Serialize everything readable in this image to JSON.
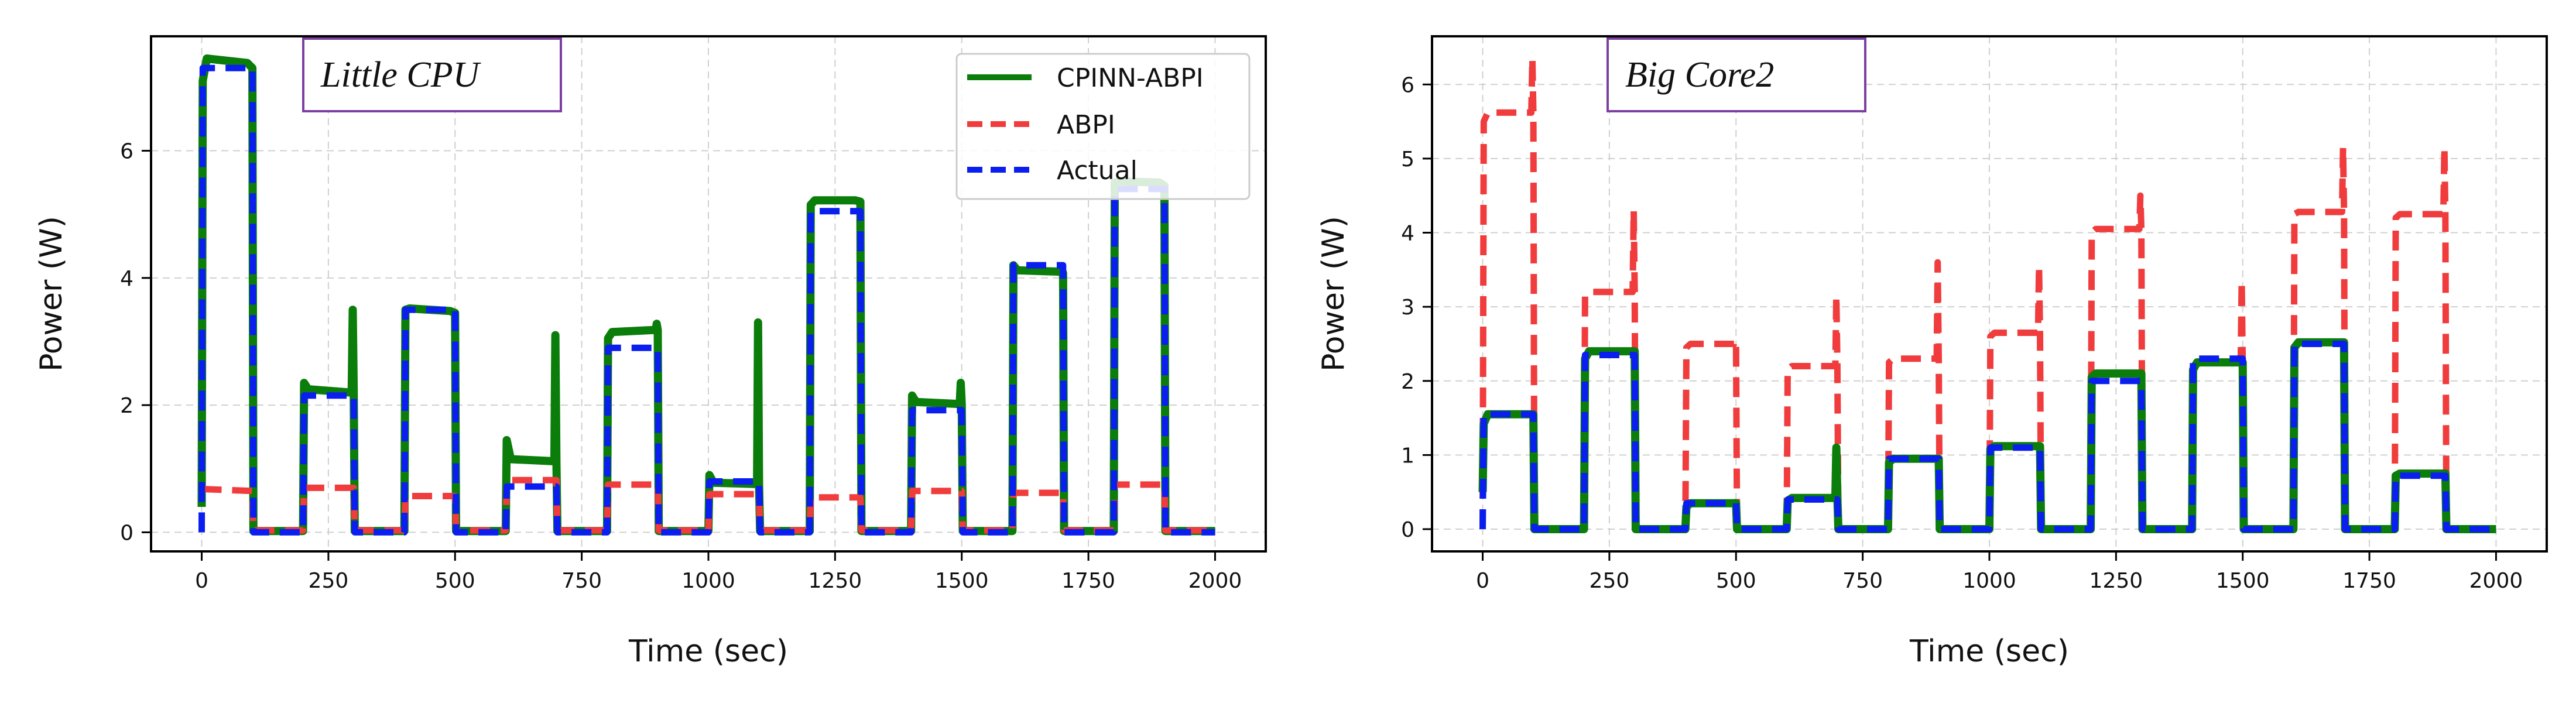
{
  "chart_data": [
    {
      "type": "line",
      "tag": "Little CPU",
      "xlabel": "Time (sec)",
      "ylabel": "Power (W)",
      "xlim": [
        -100,
        2100
      ],
      "ylim": [
        -0.3,
        7.8
      ],
      "xticks": [
        0,
        250,
        500,
        750,
        1000,
        1250,
        1500,
        1750,
        2000
      ],
      "yticks": [
        0,
        2,
        4,
        6
      ],
      "legend": {
        "position": "top-right",
        "entries": [
          "CPINN-ABPI",
          "ABPI",
          "Actual"
        ]
      },
      "series": [
        {
          "name": "CPINN-ABPI",
          "color": "#0a7d0a",
          "style": "solid",
          "x": [
            0,
            2,
            10,
            90,
            100,
            102,
            200,
            202,
            210,
            290,
            296,
            298,
            300,
            302,
            400,
            402,
            410,
            490,
            500,
            502,
            600,
            602,
            610,
            690,
            696,
            698,
            700,
            702,
            800,
            802,
            810,
            890,
            896,
            898,
            900,
            902,
            1000,
            1002,
            1010,
            1090,
            1096,
            1098,
            1100,
            1102,
            1200,
            1202,
            1210,
            1290,
            1300,
            1302,
            1400,
            1402,
            1410,
            1490,
            1496,
            1498,
            1500,
            1502,
            1600,
            1602,
            1610,
            1690,
            1700,
            1702,
            1800,
            1802,
            1810,
            1890,
            1900,
            1902,
            2000
          ],
          "y": [
            0.4,
            7.1,
            7.45,
            7.38,
            7.3,
            0.02,
            0.02,
            2.35,
            2.25,
            2.2,
            2.2,
            3.5,
            2.2,
            0.02,
            0.02,
            3.5,
            3.52,
            3.48,
            3.45,
            0.02,
            0.02,
            1.45,
            1.15,
            1.12,
            1.12,
            3.1,
            1.12,
            0.02,
            0.02,
            3.05,
            3.15,
            3.18,
            3.18,
            3.28,
            3.18,
            0.02,
            0.02,
            0.9,
            0.78,
            0.76,
            0.76,
            3.3,
            0.76,
            0.02,
            0.02,
            5.15,
            5.22,
            5.22,
            5.2,
            0.02,
            0.02,
            2.15,
            2.05,
            2.02,
            2.02,
            2.35,
            2.02,
            0.02,
            0.02,
            4.2,
            4.12,
            4.1,
            4.08,
            0.02,
            0.02,
            5.5,
            5.52,
            5.5,
            5.45,
            0.02,
            0.02
          ]
        },
        {
          "name": "ABPI",
          "color": "#f03c3c",
          "style": "dashed",
          "x": [
            0,
            100,
            102,
            200,
            202,
            300,
            302,
            400,
            402,
            500,
            502,
            600,
            602,
            700,
            702,
            800,
            802,
            900,
            902,
            1000,
            1002,
            1100,
            1102,
            1200,
            1202,
            1300,
            1302,
            1400,
            1402,
            1500,
            1502,
            1600,
            1602,
            1700,
            1702,
            1800,
            1802,
            1900,
            1902,
            2000
          ],
          "y": [
            0.68,
            0.65,
            0.03,
            0.03,
            0.7,
            0.7,
            0.03,
            0.03,
            0.57,
            0.57,
            0.03,
            0.03,
            0.82,
            0.82,
            0.03,
            0.03,
            0.75,
            0.75,
            0.03,
            0.03,
            0.6,
            0.6,
            0.03,
            0.03,
            0.55,
            0.55,
            0.03,
            0.03,
            0.65,
            0.65,
            0.03,
            0.03,
            0.62,
            0.62,
            0.03,
            0.03,
            0.75,
            0.75,
            0.03,
            0.03
          ]
        },
        {
          "name": "Actual",
          "color": "#0a1ef0",
          "style": "dashed",
          "x": [
            0,
            2,
            100,
            102,
            200,
            202,
            300,
            302,
            400,
            402,
            500,
            502,
            600,
            602,
            700,
            702,
            800,
            802,
            900,
            902,
            1000,
            1002,
            1100,
            1102,
            1200,
            1202,
            1300,
            1302,
            1400,
            1402,
            1500,
            1502,
            1600,
            1602,
            1700,
            1702,
            1800,
            1802,
            1900,
            1902,
            2000
          ],
          "y": [
            0.0,
            7.3,
            7.3,
            0.0,
            0.0,
            2.15,
            2.15,
            0.0,
            0.0,
            3.5,
            3.5,
            0.0,
            0.0,
            0.72,
            0.72,
            0.0,
            0.0,
            2.9,
            2.9,
            0.0,
            0.0,
            0.8,
            0.8,
            0.0,
            0.0,
            5.05,
            5.05,
            0.0,
            0.0,
            1.92,
            1.92,
            0.0,
            0.0,
            4.2,
            4.2,
            0.0,
            0.0,
            5.4,
            5.4,
            0.0,
            0.0
          ]
        }
      ]
    },
    {
      "type": "line",
      "tag": "Big Core2",
      "xlabel": "Time (sec)",
      "ylabel": "Power (W)",
      "xlim": [
        -100,
        2100
      ],
      "ylim": [
        -0.3,
        6.65
      ],
      "xticks": [
        0,
        250,
        500,
        750,
        1000,
        1250,
        1500,
        1750,
        2000
      ],
      "yticks": [
        0,
        1,
        2,
        3,
        4,
        5,
        6
      ],
      "series": [
        {
          "name": "ABPI",
          "color": "#f03c3c",
          "style": "dashed",
          "x": [
            0,
            2,
            10,
            96,
            98,
            100,
            102,
            200,
            202,
            210,
            296,
            298,
            300,
            302,
            400,
            402,
            410,
            496,
            498,
            500,
            502,
            600,
            602,
            610,
            696,
            698,
            700,
            702,
            800,
            802,
            810,
            896,
            898,
            900,
            902,
            1000,
            1002,
            1010,
            1096,
            1098,
            1100,
            1102,
            1200,
            1202,
            1210,
            1296,
            1298,
            1300,
            1302,
            1400,
            1402,
            1410,
            1496,
            1498,
            1500,
            1502,
            1600,
            1602,
            1610,
            1696,
            1698,
            1700,
            1702,
            1800,
            1802,
            1810,
            1896,
            1898,
            1900,
            1902,
            2000
          ],
          "y": [
            0.0,
            5.5,
            5.62,
            5.62,
            6.35,
            5.62,
            0.0,
            0.0,
            3.15,
            3.2,
            3.2,
            4.3,
            3.2,
            0.0,
            0.0,
            2.45,
            2.5,
            2.5,
            2.55,
            2.5,
            0.0,
            0.0,
            2.15,
            2.2,
            2.2,
            3.15,
            2.2,
            0.0,
            0.0,
            2.25,
            2.3,
            2.3,
            3.6,
            2.3,
            0.0,
            0.0,
            2.6,
            2.65,
            2.65,
            3.55,
            2.65,
            0.0,
            0.0,
            4.0,
            4.05,
            4.05,
            4.5,
            4.05,
            0.0,
            0.0,
            2.2,
            2.25,
            2.25,
            3.35,
            2.25,
            0.0,
            0.0,
            4.25,
            4.28,
            4.28,
            5.15,
            4.28,
            0.0,
            0.0,
            4.2,
            4.25,
            4.25,
            5.15,
            4.25,
            0.0,
            0.0
          ]
        },
        {
          "name": "CPINN-ABPI",
          "color": "#0a7d0a",
          "style": "solid",
          "x": [
            0,
            2,
            10,
            100,
            102,
            200,
            202,
            210,
            300,
            302,
            400,
            402,
            410,
            500,
            502,
            600,
            602,
            610,
            696,
            698,
            700,
            702,
            800,
            802,
            810,
            900,
            902,
            1000,
            1002,
            1010,
            1100,
            1102,
            1200,
            1202,
            1210,
            1300,
            1302,
            1400,
            1402,
            1410,
            1500,
            1502,
            1600,
            1602,
            1610,
            1700,
            1702,
            1800,
            1802,
            1810,
            1900,
            1902,
            2000
          ],
          "y": [
            0.5,
            1.42,
            1.55,
            1.55,
            0.0,
            0.0,
            2.3,
            2.4,
            2.4,
            0.0,
            0.0,
            0.3,
            0.35,
            0.35,
            0.0,
            0.0,
            0.38,
            0.42,
            0.42,
            1.1,
            0.42,
            0.0,
            0.0,
            0.9,
            0.95,
            0.95,
            0.0,
            0.0,
            1.08,
            1.12,
            1.12,
            0.0,
            0.0,
            2.05,
            2.1,
            2.1,
            0.0,
            0.0,
            2.15,
            2.25,
            2.25,
            0.0,
            0.0,
            2.45,
            2.52,
            2.52,
            0.0,
            0.0,
            0.72,
            0.75,
            0.75,
            0.0,
            0.0
          ]
        },
        {
          "name": "Actual",
          "color": "#0a1ef0",
          "style": "dashed",
          "x": [
            0,
            2,
            100,
            102,
            200,
            202,
            300,
            302,
            400,
            402,
            500,
            502,
            600,
            602,
            700,
            702,
            800,
            802,
            900,
            902,
            1000,
            1002,
            1100,
            1102,
            1200,
            1202,
            1300,
            1302,
            1400,
            1402,
            1500,
            1502,
            1600,
            1602,
            1700,
            1702,
            1800,
            1802,
            1900,
            1902,
            2000
          ],
          "y": [
            0.0,
            1.55,
            1.55,
            0.0,
            0.0,
            2.35,
            2.35,
            0.0,
            0.0,
            0.35,
            0.35,
            0.0,
            0.0,
            0.4,
            0.4,
            0.0,
            0.0,
            0.95,
            0.95,
            0.0,
            0.0,
            1.1,
            1.1,
            0.0,
            0.0,
            2.0,
            2.0,
            0.0,
            0.0,
            2.3,
            2.3,
            0.0,
            0.0,
            2.5,
            2.5,
            0.0,
            0.0,
            0.72,
            0.72,
            0.0,
            0.0
          ]
        }
      ]
    }
  ]
}
